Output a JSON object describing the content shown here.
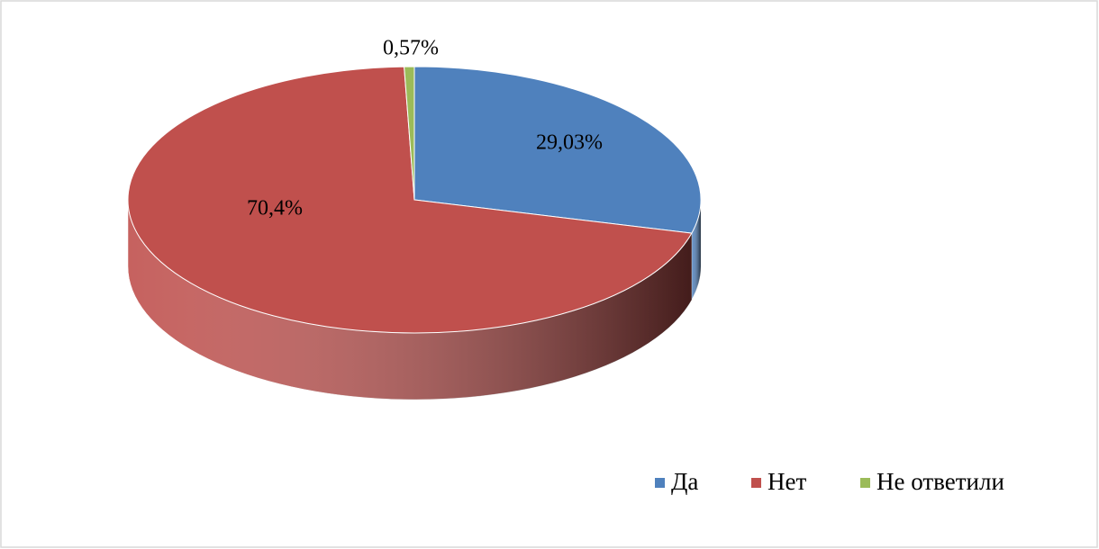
{
  "chart_data": {
    "type": "pie",
    "categories": [
      "Да",
      "Нет",
      "Не ответили"
    ],
    "values": [
      29.03,
      70.4,
      0.57
    ],
    "value_labels": [
      "29,03%",
      "70,4%",
      "0,57%"
    ],
    "colors": [
      "#4f81bd",
      "#c0504d",
      "#9bbb59"
    ],
    "legend": "bottom-right"
  }
}
